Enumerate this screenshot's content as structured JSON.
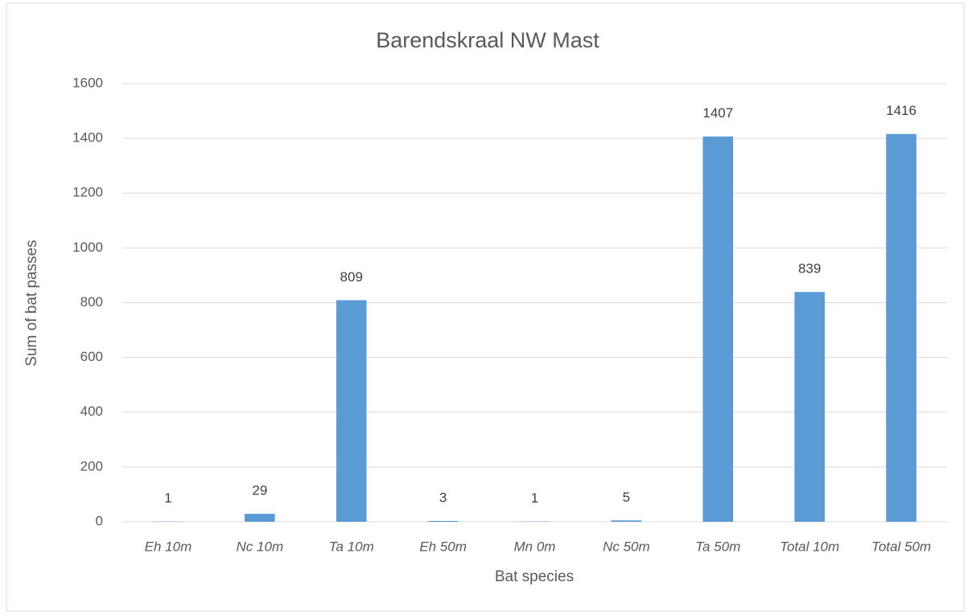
{
  "chart_data": {
    "type": "bar",
    "title": "Barendskraal NW Mast",
    "x_label": "Bat species",
    "y_label": "Sum of bat passes",
    "categories": [
      "Eh 10m",
      "Nc 10m",
      "Ta 10m",
      "Eh 50m",
      "Mn 0m",
      "Nc 50m",
      "Ta 50m",
      "Total 10m",
      "Total 50m"
    ],
    "values": [
      1,
      29,
      809,
      3,
      1,
      5,
      1407,
      839,
      1416
    ],
    "color": "#5b9bd5",
    "ylim": [
      0,
      1600
    ],
    "yticks": [
      0,
      200,
      400,
      600,
      800,
      1000,
      1200,
      1400,
      1600
    ],
    "grid": true
  }
}
